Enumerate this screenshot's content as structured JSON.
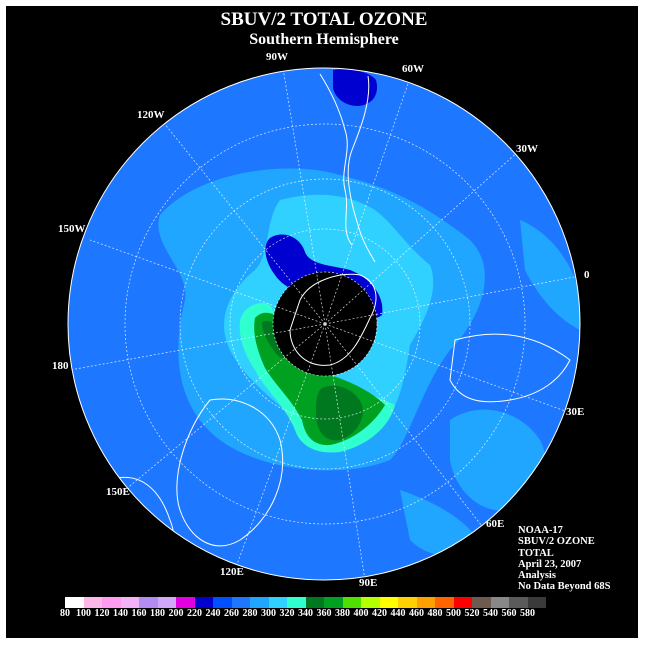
{
  "title": "SBUV/2 TOTAL OZONE",
  "subtitle": "Southern Hemisphere",
  "longitude_labels": {
    "w90": "90W",
    "w60": "60W",
    "w30": "30W",
    "e0": "0",
    "e30": "30E",
    "e60": "60E",
    "e90": "90E",
    "e120": "120E",
    "e150": "150E",
    "d180": "180",
    "w150": "150W",
    "w120": "120W"
  },
  "info": {
    "satellite": "NOAA-17",
    "product": "SBUV/2 OZONE",
    "field": "TOTAL",
    "date": "April 23, 2007",
    "type": "Analysis",
    "note": "No Data Beyond 68S"
  },
  "legend": {
    "ticks": [
      "80",
      "100",
      "120",
      "140",
      "160",
      "180",
      "200",
      "220",
      "240",
      "260",
      "280",
      "300",
      "320",
      "340",
      "360",
      "380",
      "400",
      "420",
      "440",
      "460",
      "480",
      "500",
      "520",
      "540",
      "560",
      "580"
    ],
    "colors": [
      "#ffffff",
      "#ffb6e8",
      "#ff9cf0",
      "#f2b2f6",
      "#b28cf0",
      "#d2a6f8",
      "#e000e0",
      "#0000d0",
      "#0050ff",
      "#1e78ff",
      "#21a6ff",
      "#30d0ff",
      "#30ffd0",
      "#007820",
      "#00a020",
      "#50e000",
      "#b4ff00",
      "#ffff00",
      "#ffd000",
      "#ffa000",
      "#ff6400",
      "#ff0000",
      "#6e5a4e",
      "#888888",
      "#5a5a5a",
      "#3a3a3a"
    ]
  },
  "map_colors": {
    "ocean_base": "#1e78ff",
    "medium": "#21a6ff",
    "light": "#30d0ff",
    "cyan_green": "#30ffd0",
    "dark_green": "#007820",
    "green": "#00a020",
    "dark_blue": "#0000d0",
    "pole": "#000000"
  }
}
